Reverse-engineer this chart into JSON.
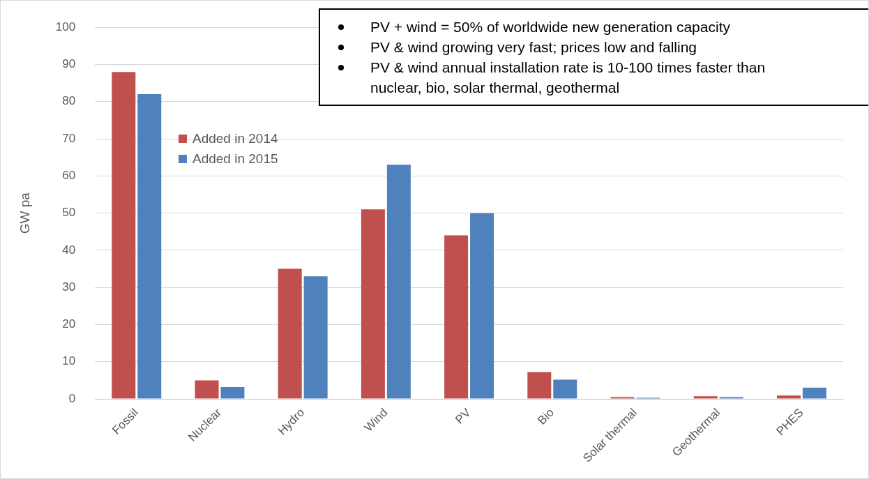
{
  "chart_data": {
    "type": "bar",
    "ylabel": "GW pa",
    "categories": [
      "Fossil",
      "Nuclear",
      "Hydro",
      "Wind",
      "PV",
      "Bio",
      "Solar thermal",
      "Geothermal",
      "PHES"
    ],
    "series": [
      {
        "name": "Added in 2014",
        "color": "#c0504d",
        "values": [
          88,
          5,
          35,
          51,
          44,
          7.2,
          0.5,
          0.7,
          0.9
        ]
      },
      {
        "name": "Added in 2015",
        "color": "#4f81bd",
        "values": [
          82,
          3.2,
          33,
          63,
          50,
          5.2,
          0.3,
          0.5,
          3
        ]
      }
    ],
    "ylim": [
      0,
      100
    ],
    "yticks": [
      0,
      10,
      20,
      30,
      40,
      50,
      60,
      70,
      80,
      90,
      100
    ],
    "grid": "y",
    "legend": "top left",
    "annotations": [
      "PV + wind = 50% of worldwide new generation capacity",
      "PV & wind growing very fast; prices low and falling",
      "PV & wind annual installation rate is 10-100 times faster than nuclear, bio, solar thermal, geothermal"
    ]
  }
}
